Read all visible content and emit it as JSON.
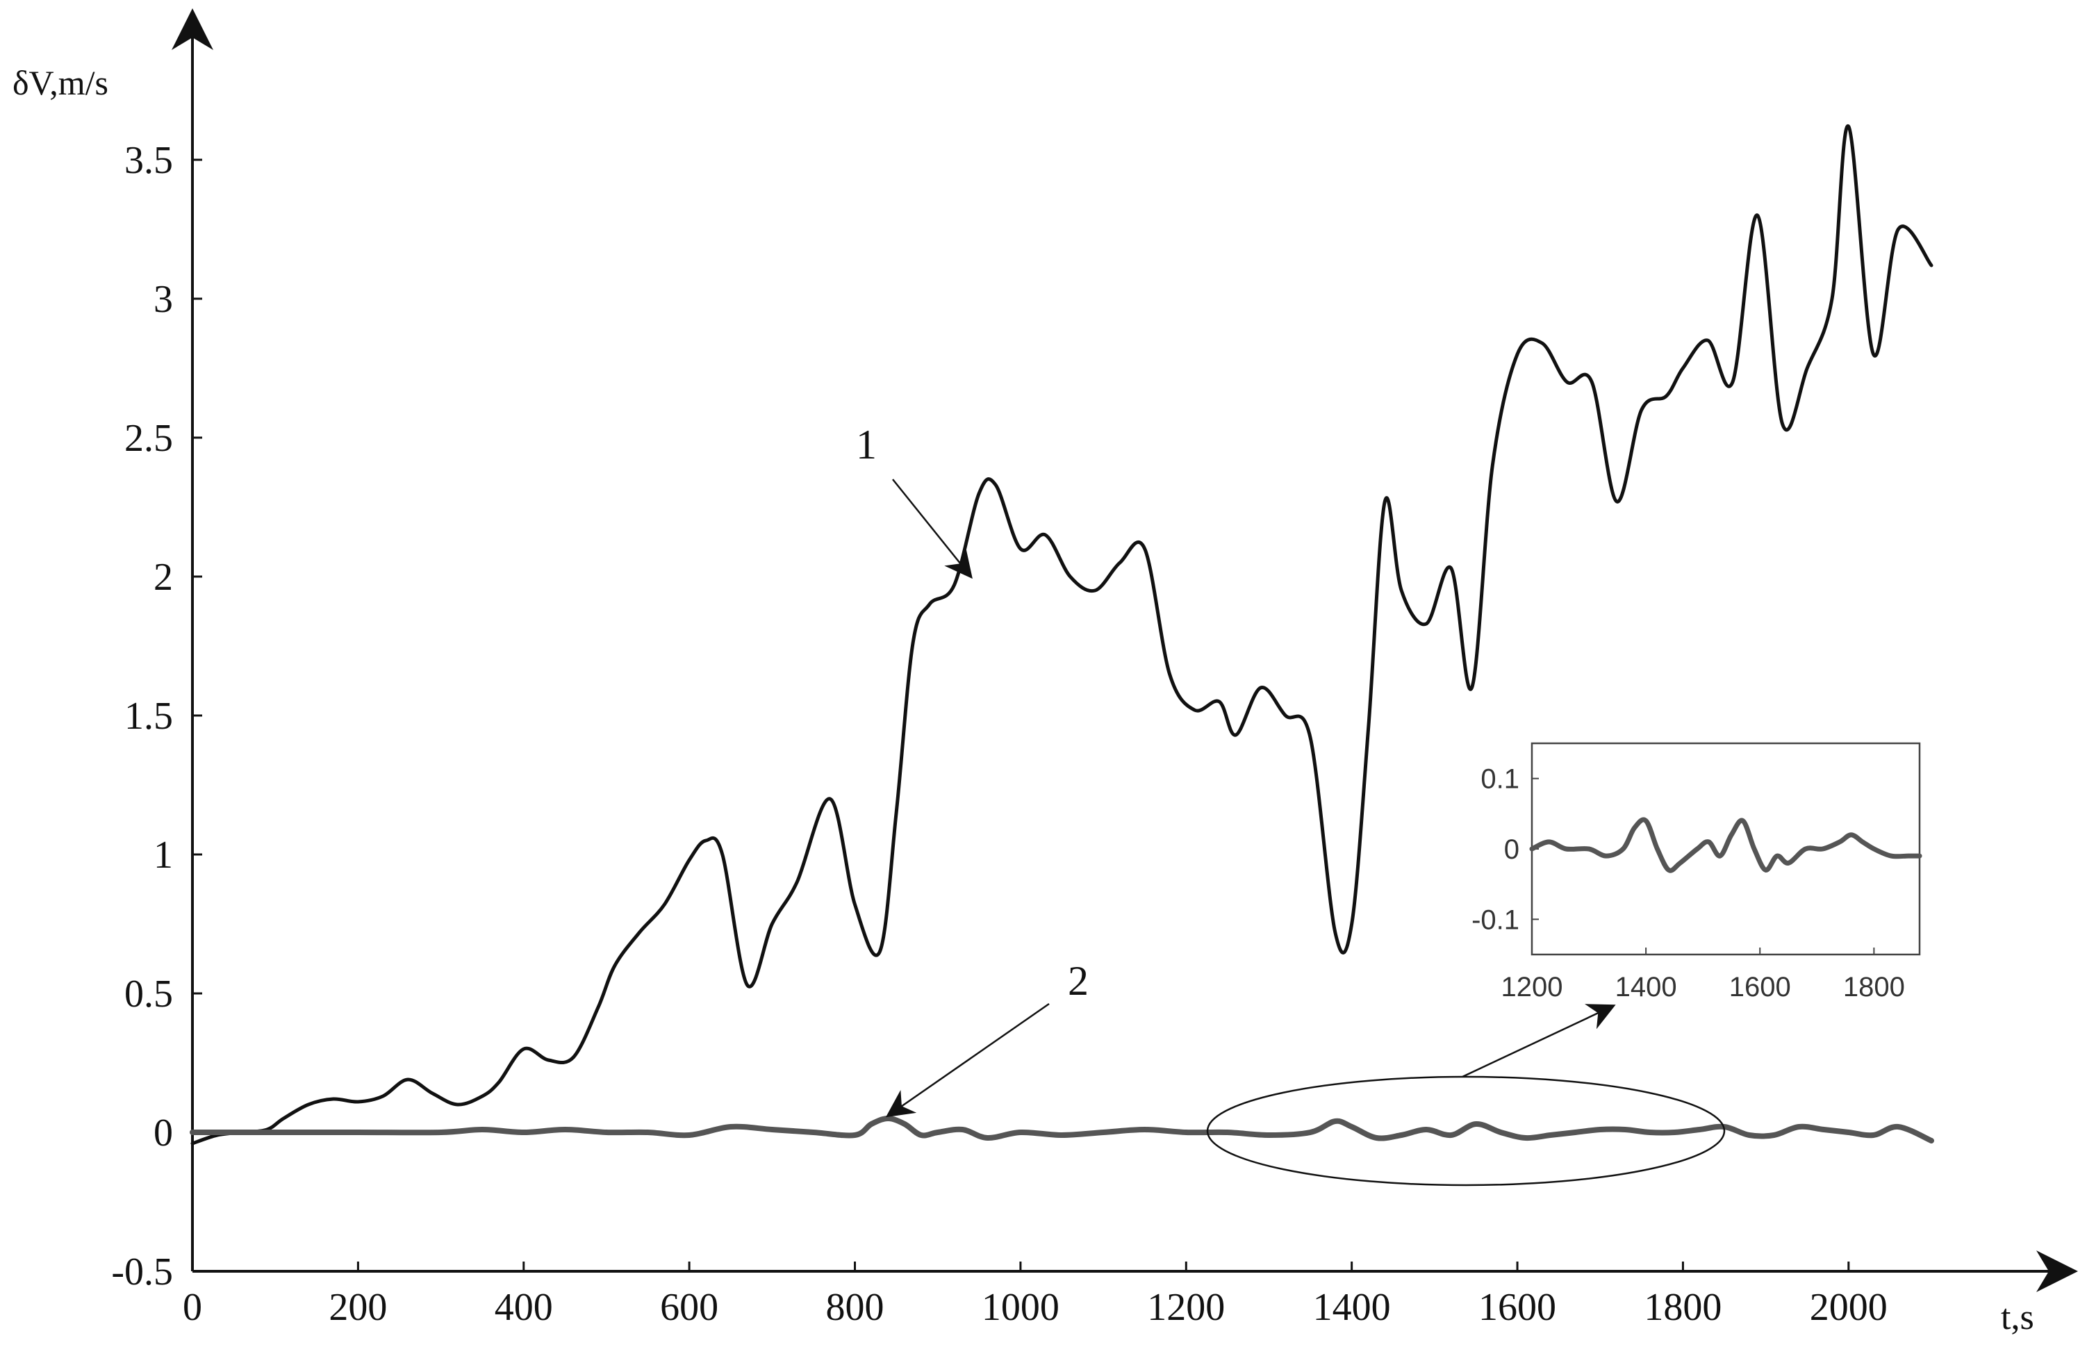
{
  "chart_data": {
    "type": "line",
    "title": "",
    "xlabel": "t,s",
    "ylabel": "δV,m/s",
    "xlim": [
      0,
      2100
    ],
    "ylim": [
      -0.5,
      3.7
    ],
    "xticks": [
      "0",
      "200",
      "400",
      "600",
      "800",
      "1000",
      "1200",
      "1400",
      "1600",
      "1800",
      "2000"
    ],
    "yticks": [
      "-0.5",
      "0",
      "0.5",
      "1",
      "1.5",
      "2",
      "2.5",
      "3",
      "3.5"
    ],
    "grid": false,
    "legend": "none",
    "colors": {
      "series1": "#111111",
      "series2": "#555555",
      "axes": "#111111"
    },
    "series": [
      {
        "label": "1",
        "x": [
          0,
          30,
          60,
          90,
          110,
          140,
          170,
          200,
          230,
          260,
          290,
          320,
          350,
          370,
          400,
          430,
          460,
          490,
          510,
          540,
          570,
          600,
          620,
          640,
          670,
          700,
          730,
          770,
          800,
          830,
          850,
          870,
          890,
          920,
          950,
          970,
          1000,
          1030,
          1060,
          1090,
          1120,
          1150,
          1180,
          1210,
          1240,
          1260,
          1290,
          1320,
          1350,
          1380,
          1400,
          1420,
          1440,
          1460,
          1490,
          1520,
          1545,
          1570,
          1600,
          1630,
          1660,
          1690,
          1720,
          1750,
          1780,
          1800,
          1830,
          1860,
          1890,
          1920,
          1950,
          1980,
          2000,
          2030,
          2060,
          2100
        ],
        "y": [
          -0.04,
          -0.01,
          0.0,
          0.01,
          0.05,
          0.1,
          0.12,
          0.11,
          0.13,
          0.19,
          0.14,
          0.1,
          0.13,
          0.18,
          0.3,
          0.26,
          0.27,
          0.45,
          0.6,
          0.72,
          0.82,
          0.98,
          1.05,
          1.0,
          0.53,
          0.75,
          0.9,
          1.2,
          0.82,
          0.65,
          1.15,
          1.76,
          1.9,
          1.97,
          2.3,
          2.33,
          2.1,
          2.15,
          2.0,
          1.95,
          2.05,
          2.1,
          1.65,
          1.52,
          1.55,
          1.43,
          1.6,
          1.5,
          1.42,
          0.72,
          0.75,
          1.45,
          2.27,
          1.95,
          1.83,
          2.03,
          1.6,
          2.4,
          2.8,
          2.84,
          2.7,
          2.7,
          2.27,
          2.6,
          2.65,
          2.75,
          2.85,
          2.7,
          3.3,
          2.55,
          2.75,
          3.0,
          3.62,
          2.8,
          3.25,
          3.12
        ]
      },
      {
        "label": "2",
        "x": [
          0,
          100,
          200,
          300,
          350,
          400,
          450,
          500,
          550,
          600,
          650,
          700,
          750,
          800,
          820,
          840,
          860,
          880,
          900,
          930,
          960,
          1000,
          1050,
          1100,
          1150,
          1200,
          1250,
          1300,
          1350,
          1380,
          1400,
          1430,
          1460,
          1490,
          1520,
          1550,
          1580,
          1610,
          1640,
          1670,
          1700,
          1730,
          1760,
          1790,
          1820,
          1850,
          1880,
          1910,
          1940,
          1970,
          2000,
          2030,
          2060,
          2100
        ],
        "y": [
          0.0,
          0.0,
          0.0,
          0.0,
          0.01,
          0.0,
          0.01,
          0.0,
          0.0,
          -0.01,
          0.02,
          0.01,
          0.0,
          -0.01,
          0.03,
          0.05,
          0.03,
          -0.01,
          0.0,
          0.01,
          -0.02,
          0.0,
          -0.01,
          0.0,
          0.01,
          0.0,
          0.0,
          -0.01,
          0.0,
          0.04,
          0.02,
          -0.02,
          -0.01,
          0.01,
          -0.01,
          0.03,
          0.0,
          -0.02,
          -0.01,
          0.0,
          0.01,
          0.01,
          0.0,
          0.0,
          0.01,
          0.02,
          -0.01,
          -0.01,
          0.02,
          0.01,
          0.0,
          -0.01,
          0.02,
          -0.03
        ]
      }
    ],
    "inset": {
      "xlim": [
        1200,
        1880
      ],
      "ylim": [
        -0.15,
        0.15
      ],
      "xticks": [
        "1200",
        "1400",
        "1600",
        "1800"
      ],
      "yticks": [
        "0.1",
        "0",
        "-0.1"
      ],
      "series": [
        {
          "label": "2",
          "x": [
            1200,
            1230,
            1260,
            1300,
            1330,
            1360,
            1380,
            1400,
            1420,
            1440,
            1460,
            1490,
            1510,
            1530,
            1550,
            1570,
            1590,
            1610,
            1630,
            1650,
            1680,
            1710,
            1740,
            1760,
            1780,
            1800,
            1830,
            1860,
            1880
          ],
          "y": [
            0.0,
            0.01,
            0.0,
            0.0,
            -0.01,
            0.0,
            0.03,
            0.04,
            0.0,
            -0.03,
            -0.02,
            0.0,
            0.01,
            -0.01,
            0.02,
            0.04,
            0.0,
            -0.03,
            -0.01,
            -0.02,
            0.0,
            0.0,
            0.01,
            0.02,
            0.01,
            0.0,
            -0.01,
            -0.01,
            -0.01
          ]
        }
      ]
    },
    "annotations": [
      {
        "text": "1",
        "points_to": {
          "series": "1",
          "x": 940,
          "y": 2.0
        }
      },
      {
        "text": "2",
        "points_to": {
          "series": "2",
          "x": 840,
          "y": 0.04
        }
      }
    ]
  }
}
